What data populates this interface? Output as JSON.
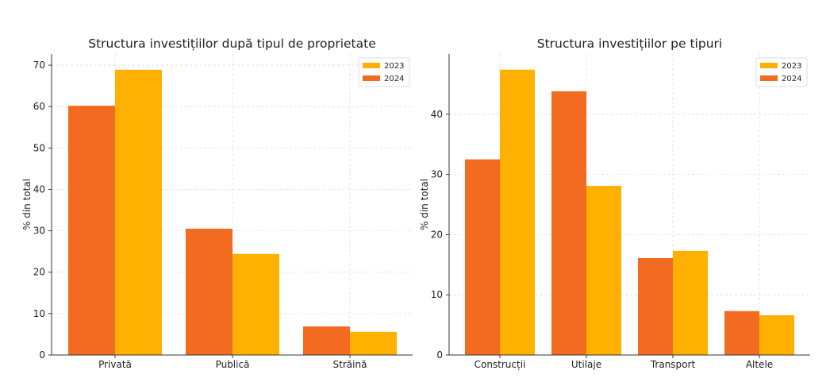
{
  "chart_data": [
    {
      "type": "bar",
      "title": "Structura investițiilor după tipul de proprietate",
      "xlabel": "",
      "ylabel": "% din total",
      "ylim": [
        0,
        72.7
      ],
      "yticks": [
        0,
        10,
        20,
        30,
        40,
        50,
        60,
        70
      ],
      "categories": [
        "Privată",
        "Publică",
        "Străină"
      ],
      "series": [
        {
          "name": "2024",
          "color": "#F26B21",
          "values": [
            60.2,
            30.5,
            6.9
          ]
        },
        {
          "name": "2023",
          "color": "#FFB000",
          "values": [
            68.9,
            24.4,
            5.6
          ]
        }
      ],
      "legend": [
        "2023",
        "2024"
      ],
      "legend_position": "top-right",
      "grid": true
    },
    {
      "type": "bar",
      "title": "Structura investițiilor pe tipuri",
      "xlabel": "",
      "ylabel": "% din total",
      "ylim": [
        0,
        50
      ],
      "yticks": [
        0,
        10,
        20,
        30,
        40
      ],
      "categories": [
        "Construcții",
        "Utilaje",
        "Transport",
        "Altele"
      ],
      "series": [
        {
          "name": "2024",
          "color": "#F26B21",
          "values": [
            32.5,
            43.8,
            16.1,
            7.3
          ]
        },
        {
          "name": "2023",
          "color": "#FFB000",
          "values": [
            47.4,
            28.1,
            17.3,
            6.6
          ]
        }
      ],
      "legend": [
        "2023",
        "2024"
      ],
      "legend_position": "top-right",
      "grid": true
    }
  ]
}
